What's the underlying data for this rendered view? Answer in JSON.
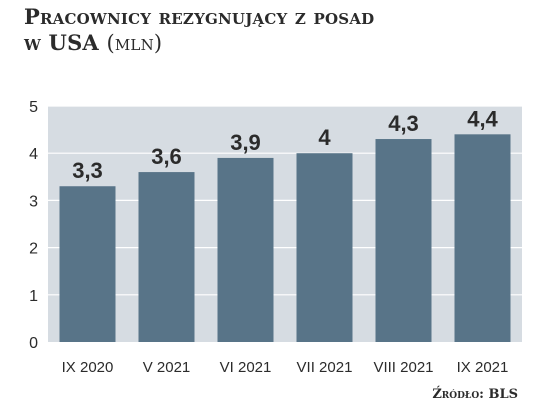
{
  "title_line1": "Pracownicy rezygnujący z posad",
  "title_line2": "w USA",
  "title_unit": "(mln)",
  "source": "Źródło: BLS",
  "colors": {
    "bar": "#587488",
    "plot_bg": "#d6dce2",
    "text": "#2b2b2b",
    "gridline": "#ffffff"
  },
  "chart_data": {
    "type": "bar",
    "categories": [
      "IX 2020",
      "V 2021",
      "VI 2021",
      "VII 2021",
      "VIII 2021",
      "IX 2021"
    ],
    "values": [
      3.3,
      3.6,
      3.9,
      4,
      4.3,
      4.4
    ],
    "value_labels": [
      "3,3",
      "3,6",
      "3,9",
      "4",
      "4,3",
      "4,4"
    ],
    "y_ticks": [
      "0",
      "1",
      "2",
      "3",
      "4",
      "5"
    ],
    "ylim": [
      0,
      5
    ],
    "grid": true
  }
}
